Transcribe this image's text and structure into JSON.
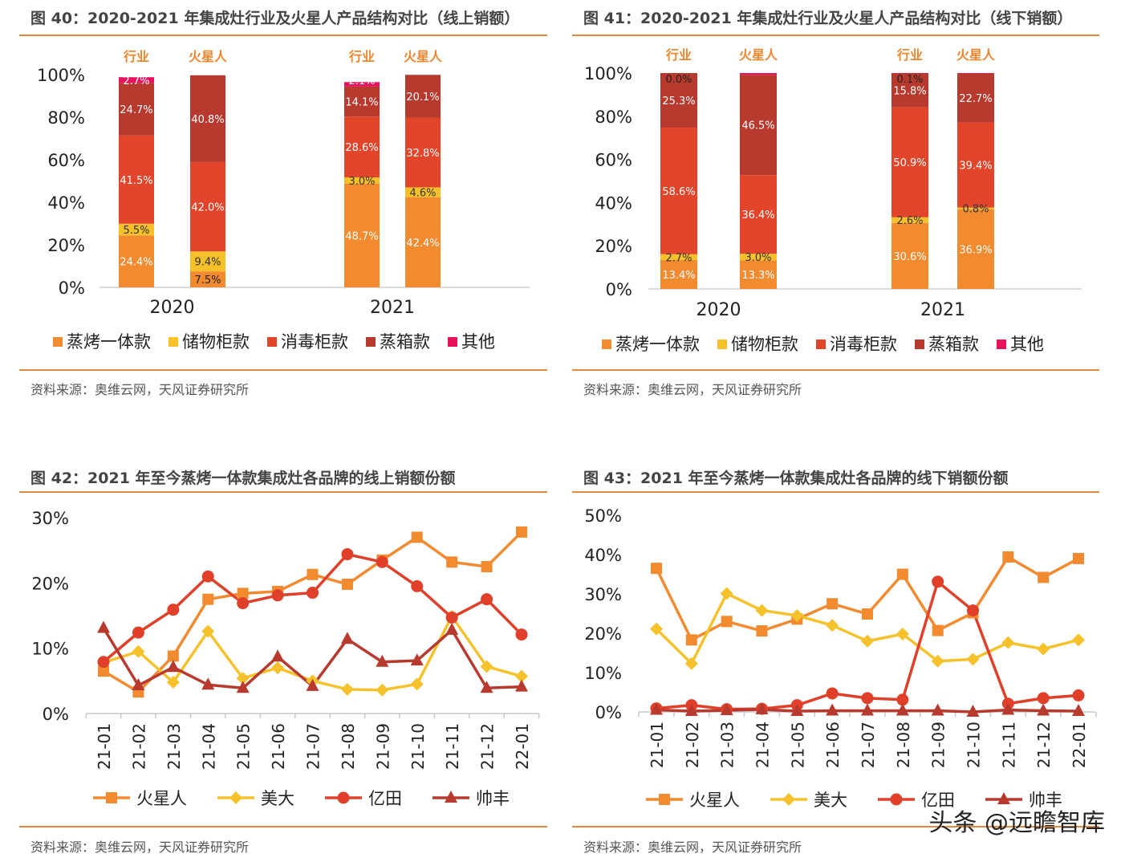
{
  "colors": {
    "steam_oven": "#f28a30",
    "storage": "#f5c02a",
    "sterilizer": "#e2452a",
    "steam_box": "#b8392e",
    "other": "#e8115b",
    "marssenger": "#f28a30",
    "midea": "#f6c22b",
    "yitian": "#e0402a",
    "shuaifeng": "#b83a2e"
  },
  "source_text": "资料来源：奥维云网，天风证券研究所",
  "watermark": "头条 @远瞻智库",
  "chart_data": [
    {
      "type": "bar",
      "stacked": true,
      "title": "图 40：2020-2021 年集成灶行业及火星人产品结构对比（线上销额）",
      "ylim": [
        0,
        100
      ],
      "yticks": [
        "0%",
        "20%",
        "40%",
        "60%",
        "80%",
        "100%"
      ],
      "group_labels": [
        "2020",
        "2021"
      ],
      "bar_labels": [
        "行业",
        "火星人",
        "行业",
        "火星人"
      ],
      "legend": [
        "蒸烤一体款",
        "储物柜款",
        "消毒柜款",
        "蒸箱款",
        "其他"
      ],
      "bars": [
        {
          "values": [
            24.4,
            5.5,
            41.5,
            24.7,
            2.7
          ],
          "labels": [
            "24.4%",
            "5.5%",
            "41.5%",
            "24.7%",
            "2.7%"
          ]
        },
        {
          "values": [
            7.5,
            9.4,
            42.0,
            40.8,
            0.0
          ],
          "labels": [
            "7.5%",
            "9.4%",
            "42.0%",
            "40.8%",
            ""
          ]
        },
        {
          "values": [
            48.7,
            3.0,
            28.6,
            14.1,
            2.1
          ],
          "labels": [
            "48.7%",
            "3.0%",
            "28.6%",
            "14.1%",
            "2.1%"
          ]
        },
        {
          "values": [
            42.4,
            4.6,
            32.8,
            20.1,
            0.0
          ],
          "labels": [
            "42.4%",
            "4.6%",
            "32.8%",
            "20.1%",
            ""
          ]
        }
      ]
    },
    {
      "type": "bar",
      "stacked": true,
      "title": "图 41：2020-2021 年集成灶行业及火星人产品结构对比（线下销额）",
      "ylim": [
        0,
        100
      ],
      "yticks": [
        "0%",
        "20%",
        "40%",
        "60%",
        "80%",
        "100%"
      ],
      "group_labels": [
        "2020",
        "2021"
      ],
      "bar_labels": [
        "行业",
        "火星人",
        "行业",
        "火星人"
      ],
      "legend": [
        "蒸烤一体款",
        "储物柜款",
        "消毒柜款",
        "蒸箱款",
        "其他"
      ],
      "bars": [
        {
          "values": [
            13.4,
            2.7,
            58.6,
            25.3,
            0.0
          ],
          "labels": [
            "13.4%",
            "2.7%",
            "58.6%",
            "25.3%",
            "0.0%"
          ]
        },
        {
          "values": [
            13.3,
            3.0,
            36.4,
            46.5,
            0.8
          ],
          "labels": [
            "13.3%",
            "3.0%",
            "36.4%",
            "46.5%",
            ""
          ]
        },
        {
          "values": [
            30.6,
            2.6,
            50.9,
            15.8,
            0.1
          ],
          "labels": [
            "30.6%",
            "2.6%",
            "50.9%",
            "15.8%",
            "0.1%"
          ]
        },
        {
          "values": [
            36.9,
            0.8,
            39.4,
            22.7,
            0.2
          ],
          "labels": [
            "36.9%",
            "0.8%",
            "39.4%",
            "22.7%",
            ""
          ]
        }
      ]
    },
    {
      "type": "line",
      "title": "图 42：2021 年至今蒸烤一体款集成灶各品牌的线上销额份额",
      "ylim": [
        0,
        30
      ],
      "yticks": [
        "0%",
        "10%",
        "20%",
        "30%"
      ],
      "categories": [
        "21-01",
        "21-02",
        "21-03",
        "21-04",
        "21-05",
        "21-06",
        "21-07",
        "21-08",
        "21-09",
        "21-10",
        "21-11",
        "21-12",
        "22-01"
      ],
      "series": [
        {
          "name": "火星人",
          "marker": "square",
          "values": [
            6.5,
            3.3,
            8.8,
            17.5,
            18.4,
            18.7,
            21.3,
            19.8,
            23.5,
            27.0,
            23.2,
            22.5,
            27.8
          ]
        },
        {
          "name": "美大",
          "marker": "diamond",
          "values": [
            7.8,
            9.5,
            4.8,
            12.6,
            5.4,
            7.0,
            5.0,
            3.7,
            3.6,
            4.5,
            14.9,
            7.2,
            5.7
          ]
        },
        {
          "name": "亿田",
          "marker": "circle",
          "values": [
            7.9,
            12.4,
            15.9,
            21.0,
            16.9,
            18.1,
            18.5,
            24.4,
            23.2,
            19.5,
            14.7,
            17.5,
            12.1
          ]
        },
        {
          "name": "帅丰",
          "marker": "triangle",
          "values": [
            13.1,
            4.3,
            7.1,
            4.4,
            3.9,
            8.7,
            4.2,
            11.4,
            7.9,
            8.1,
            12.8,
            3.9,
            4.1
          ]
        }
      ]
    },
    {
      "type": "line",
      "title": "图 43：2021 年至今蒸烤一体款集成灶各品牌的线下销额份额",
      "ylim": [
        0,
        50
      ],
      "yticks": [
        "0%",
        "10%",
        "20%",
        "30%",
        "40%",
        "50%"
      ],
      "categories": [
        "21-01",
        "21-02",
        "21-03",
        "21-04",
        "21-05",
        "21-06",
        "21-07",
        "21-08",
        "21-09",
        "21-10",
        "21-11",
        "21-12",
        "22-01"
      ],
      "series": [
        {
          "name": "火星人",
          "marker": "square",
          "values": [
            36.5,
            18.3,
            23.0,
            20.6,
            23.6,
            27.5,
            24.9,
            35.0,
            20.7,
            25.2,
            39.4,
            34.2,
            39.0
          ]
        },
        {
          "name": "美大",
          "marker": "diamond",
          "values": [
            21.1,
            12.3,
            30.1,
            25.8,
            24.5,
            22.0,
            18.0,
            19.8,
            12.9,
            13.4,
            17.6,
            16.0,
            18.3
          ]
        },
        {
          "name": "亿田",
          "marker": "circle",
          "values": [
            0.9,
            1.7,
            0.7,
            0.8,
            1.7,
            4.7,
            3.5,
            3.1,
            33.1,
            25.8,
            2.1,
            3.5,
            4.2
          ]
        },
        {
          "name": "帅丰",
          "marker": "triangle",
          "values": [
            0.5,
            0.2,
            0.4,
            0.6,
            0.2,
            0.3,
            0.3,
            0.3,
            0.3,
            0.0,
            0.5,
            0.3,
            0.2
          ]
        }
      ]
    }
  ]
}
